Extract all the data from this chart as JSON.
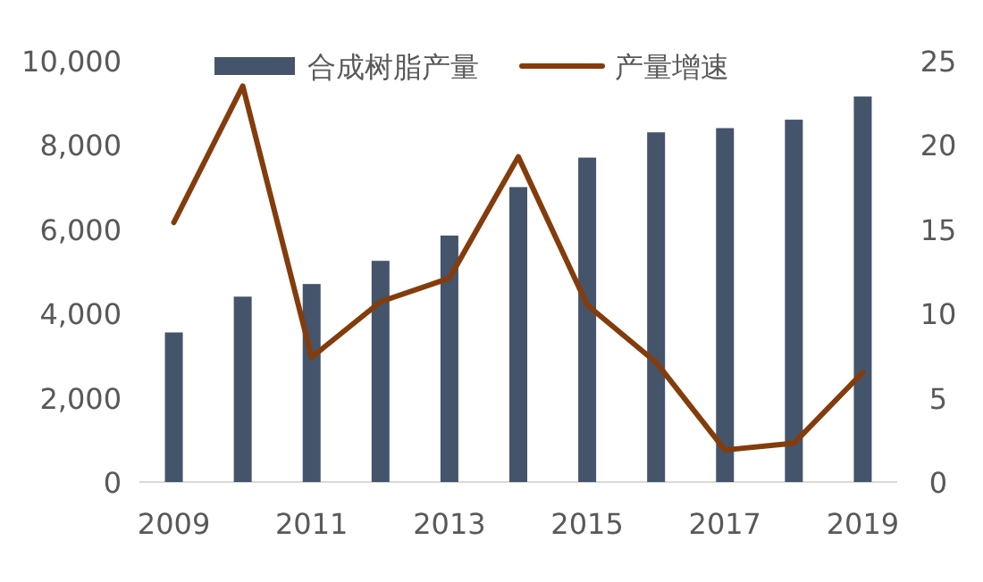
{
  "chart_data": {
    "type": "bar",
    "categories": [
      "2009",
      null,
      "2011",
      null,
      "2013",
      null,
      "2015",
      null,
      "2017",
      null,
      "2019"
    ],
    "series": [
      {
        "name": "合成树脂产量",
        "color": "#44546a",
        "values": [
          3550,
          4400,
          4700,
          5250,
          5850,
          7000,
          7700,
          8300,
          8400,
          8600,
          9150
        ]
      },
      {
        "name": "产量增速",
        "type": "line",
        "axis": "y2",
        "color": "#843c0c",
        "values": [
          15.4,
          23.5,
          7.4,
          10.7,
          12.1,
          19.3,
          10.5,
          7.1,
          1.9,
          2.3,
          6.5
        ]
      }
    ],
    "ylim": [
      0,
      10000
    ],
    "yticks": [
      0,
      {
        "value": 2000,
        "label": "2,000"
      },
      {
        "value": 4000,
        "label": "4,000"
      },
      {
        "value": 6000,
        "label": "6,000"
      },
      {
        "value": 8000,
        "label": "8,000"
      },
      {
        "value": 10000,
        "label": "10,000"
      }
    ],
    "y2lim": [
      0,
      25
    ],
    "y2ticks": [
      0,
      5,
      10,
      15,
      20,
      25
    ],
    "legend": "top"
  }
}
